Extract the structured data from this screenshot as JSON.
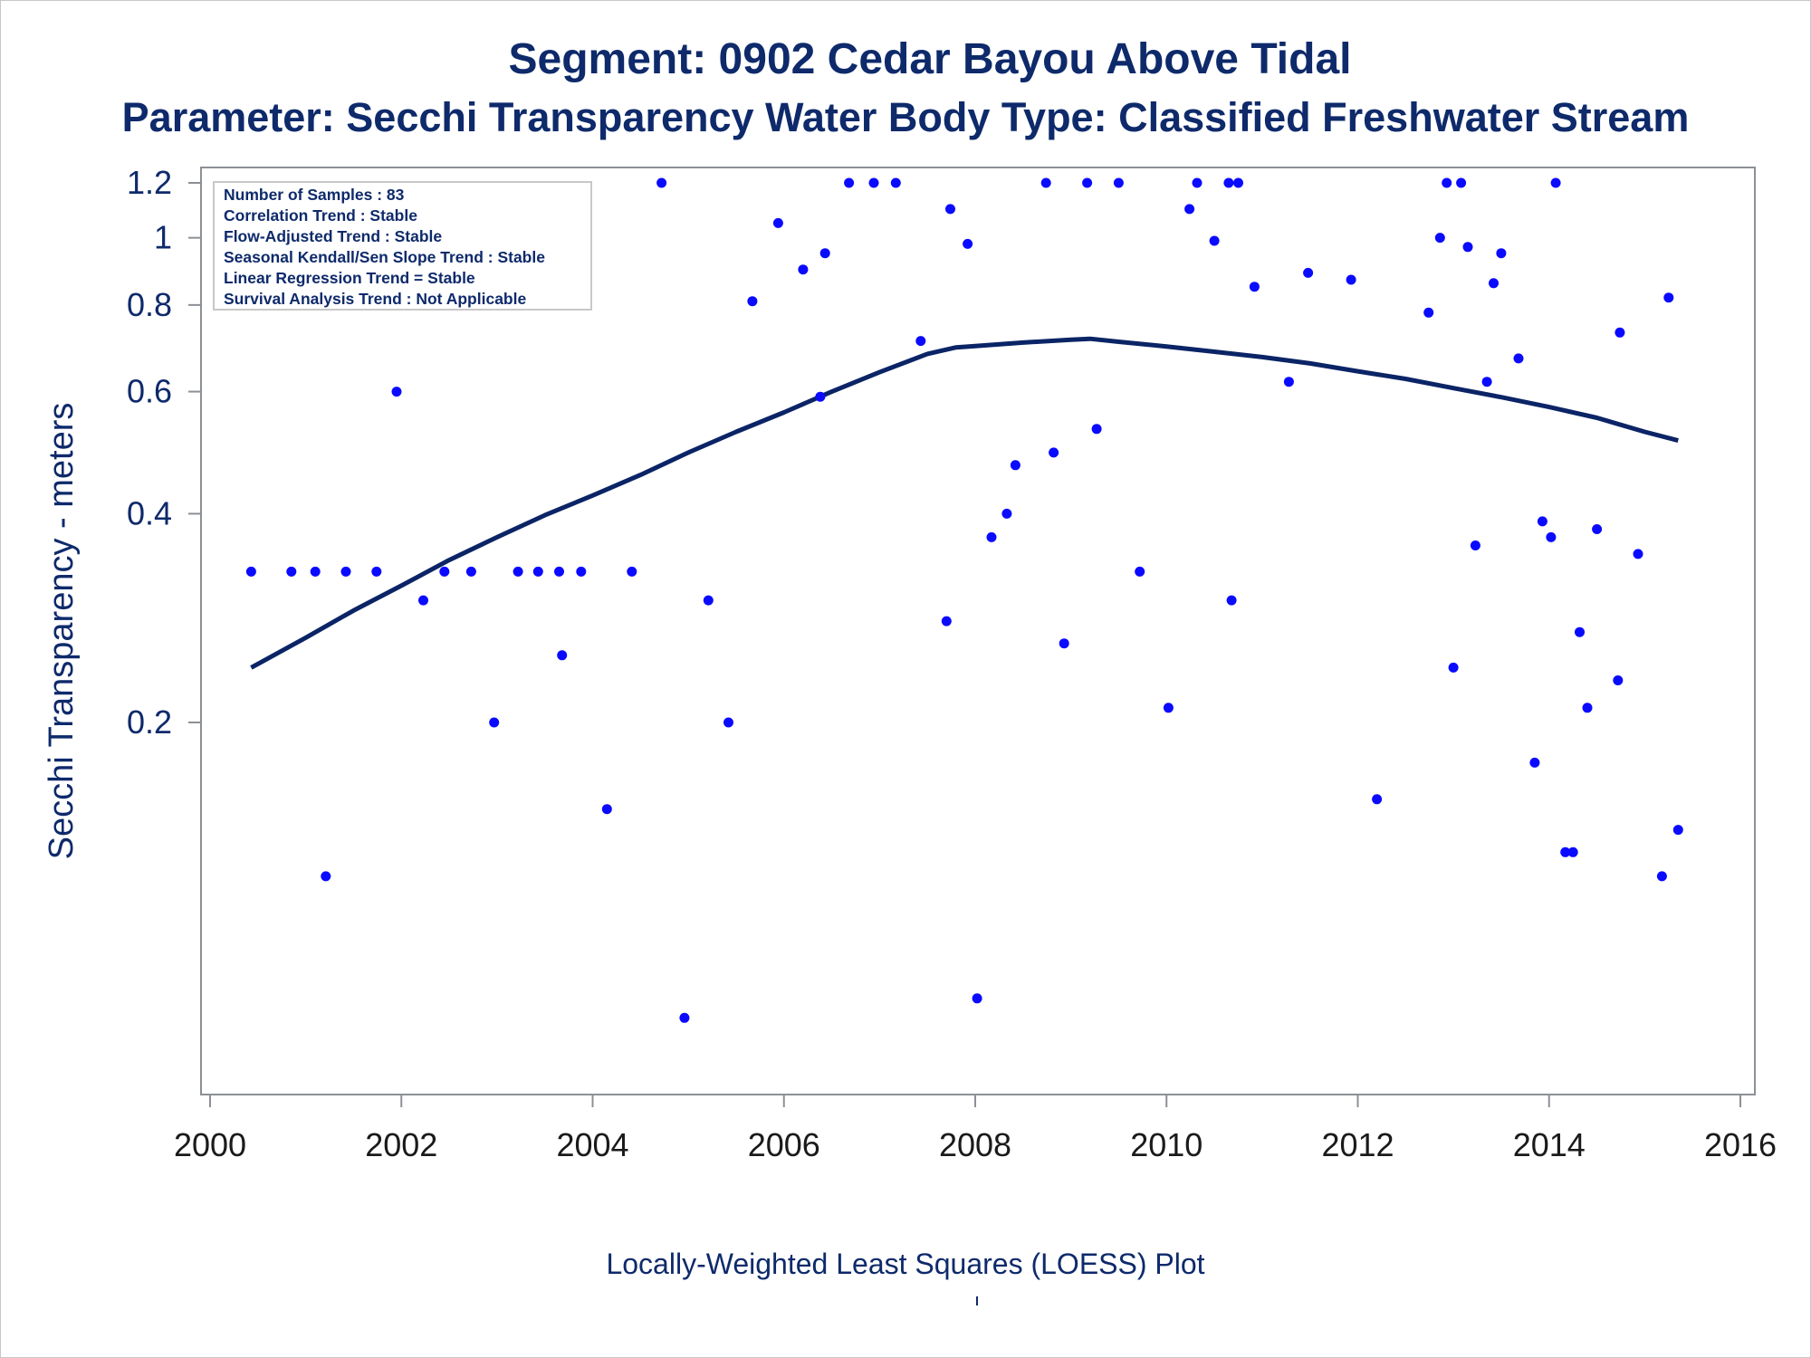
{
  "title": "Segment: 0902  Cedar Bayou Above Tidal",
  "subtitle": "Parameter: Secchi Transparency   Water Body Type: Classified Freshwater Stream",
  "footnote": "Locally-Weighted Least Squares (LOESS) Plot",
  "footnote_mark": "'",
  "colors": {
    "text": "#0e2a6b",
    "points": "#0a0aff",
    "line": "#0b2466",
    "axis": "#8c9096"
  },
  "info_box": [
    "Number of Samples : 83",
    "Correlation Trend : Stable",
    "Flow-Adjusted Trend : Stable",
    "Seasonal Kendall/Sen Slope Trend : Stable",
    "Linear Regression Trend = Stable",
    "Survival Analysis Trend : Not Applicable"
  ],
  "chart_data": {
    "type": "scatter",
    "xlabel": "",
    "ylabel": "Secchi Transparency - meters",
    "yscale": "log",
    "xlim": [
      2000,
      2016
    ],
    "ylim": [
      0.06,
      1.2
    ],
    "x_ticks": [
      2000,
      2002,
      2004,
      2006,
      2008,
      2010,
      2012,
      2014,
      2016
    ],
    "y_ticks": [
      0.2,
      0.4,
      0.6,
      0.8,
      1,
      1.2
    ],
    "y_tick_labels": [
      "0.2",
      "0.4",
      "0.6",
      "0.8",
      "1",
      "1.2"
    ],
    "grid": false,
    "series": [
      {
        "type": "scatter",
        "points": [
          [
            2000.43,
            0.33
          ],
          [
            2000.85,
            0.33
          ],
          [
            2001.1,
            0.33
          ],
          [
            2001.21,
            0.12
          ],
          [
            2001.42,
            0.33
          ],
          [
            2001.74,
            0.33
          ],
          [
            2001.95,
            0.6
          ],
          [
            2002.23,
            0.3
          ],
          [
            2002.45,
            0.33
          ],
          [
            2002.73,
            0.33
          ],
          [
            2002.97,
            0.2
          ],
          [
            2003.22,
            0.33
          ],
          [
            2003.43,
            0.33
          ],
          [
            2003.65,
            0.33
          ],
          [
            2003.68,
            0.25
          ],
          [
            2003.88,
            0.33
          ],
          [
            2004.15,
            0.15
          ],
          [
            2004.41,
            0.33
          ],
          [
            2004.72,
            1.2
          ],
          [
            2004.96,
            0.075
          ],
          [
            2005.21,
            0.3
          ],
          [
            2005.42,
            0.2
          ],
          [
            2005.67,
            0.81
          ],
          [
            2005.94,
            1.05
          ],
          [
            2006.2,
            0.9
          ],
          [
            2006.38,
            0.59
          ],
          [
            2006.43,
            0.95
          ],
          [
            2006.68,
            1.2
          ],
          [
            2006.94,
            1.2
          ],
          [
            2007.17,
            1.2
          ],
          [
            2007.43,
            0.71
          ],
          [
            2007.7,
            0.28
          ],
          [
            2007.74,
            1.1
          ],
          [
            2007.92,
            0.98
          ],
          [
            2008.02,
            0.08
          ],
          [
            2008.17,
            0.37
          ],
          [
            2008.33,
            0.4
          ],
          [
            2008.42,
            0.47
          ],
          [
            2008.74,
            1.2
          ],
          [
            2008.82,
            0.49
          ],
          [
            2008.93,
            0.26
          ],
          [
            2009.17,
            1.2
          ],
          [
            2009.27,
            0.53
          ],
          [
            2009.5,
            1.2
          ],
          [
            2009.72,
            0.33
          ],
          [
            2010.02,
            0.21
          ],
          [
            2010.24,
            1.1
          ],
          [
            2010.32,
            1.2
          ],
          [
            2010.5,
            0.99
          ],
          [
            2010.65,
            1.2
          ],
          [
            2010.68,
            0.3
          ],
          [
            2010.75,
            1.2
          ],
          [
            2010.92,
            0.85
          ],
          [
            2011.28,
            0.62
          ],
          [
            2011.48,
            0.89
          ],
          [
            2011.93,
            0.87
          ],
          [
            2012.2,
            0.155
          ],
          [
            2012.74,
            0.78
          ],
          [
            2012.86,
            1.0
          ],
          [
            2012.93,
            1.2
          ],
          [
            2013.0,
            0.24
          ],
          [
            2013.08,
            1.2
          ],
          [
            2013.15,
            0.97
          ],
          [
            2013.23,
            0.36
          ],
          [
            2013.35,
            0.62
          ],
          [
            2013.42,
            0.86
          ],
          [
            2013.5,
            0.95
          ],
          [
            2013.68,
            0.67
          ],
          [
            2013.85,
            0.175
          ],
          [
            2013.93,
            0.39
          ],
          [
            2014.02,
            0.37
          ],
          [
            2014.07,
            1.2
          ],
          [
            2014.17,
            0.13
          ],
          [
            2014.25,
            0.13
          ],
          [
            2014.32,
            0.27
          ],
          [
            2014.4,
            0.21
          ],
          [
            2014.5,
            0.38
          ],
          [
            2014.72,
            0.23
          ],
          [
            2014.74,
            0.73
          ],
          [
            2014.93,
            0.35
          ],
          [
            2015.18,
            0.12
          ],
          [
            2015.25,
            0.82
          ],
          [
            2015.35,
            0.14
          ]
        ]
      },
      {
        "type": "line",
        "points": [
          [
            2000.43,
            0.24
          ],
          [
            2001.0,
            0.265
          ],
          [
            2001.5,
            0.29
          ],
          [
            2002.0,
            0.315
          ],
          [
            2002.5,
            0.343
          ],
          [
            2003.0,
            0.37
          ],
          [
            2003.5,
            0.398
          ],
          [
            2004.0,
            0.425
          ],
          [
            2004.5,
            0.455
          ],
          [
            2005.0,
            0.49
          ],
          [
            2005.5,
            0.525
          ],
          [
            2006.0,
            0.56
          ],
          [
            2006.5,
            0.6
          ],
          [
            2007.0,
            0.64
          ],
          [
            2007.5,
            0.68
          ],
          [
            2007.8,
            0.695
          ],
          [
            2008.0,
            0.698
          ],
          [
            2008.5,
            0.706
          ],
          [
            2009.0,
            0.713
          ],
          [
            2009.2,
            0.715
          ],
          [
            2009.5,
            0.708
          ],
          [
            2010.0,
            0.697
          ],
          [
            2010.5,
            0.685
          ],
          [
            2011.0,
            0.673
          ],
          [
            2011.5,
            0.659
          ],
          [
            2012.0,
            0.642
          ],
          [
            2012.5,
            0.626
          ],
          [
            2013.0,
            0.607
          ],
          [
            2013.5,
            0.589
          ],
          [
            2014.0,
            0.57
          ],
          [
            2014.5,
            0.55
          ],
          [
            2015.0,
            0.525
          ],
          [
            2015.35,
            0.51
          ]
        ]
      }
    ]
  }
}
